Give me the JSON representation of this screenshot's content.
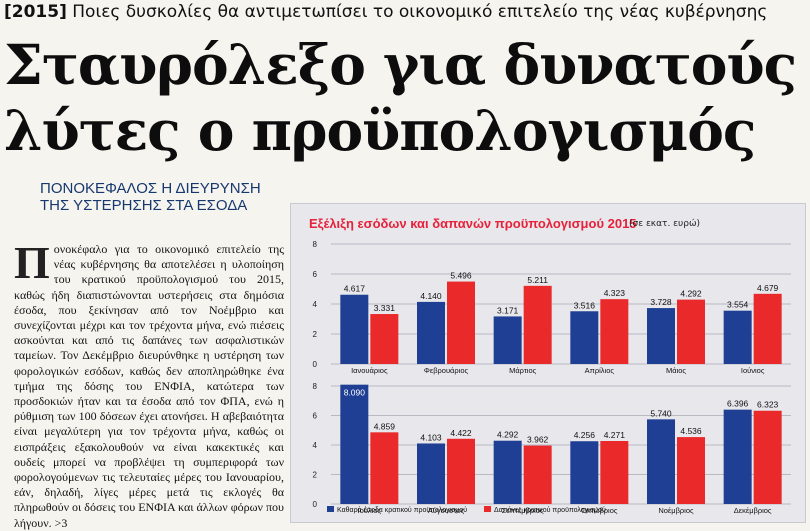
{
  "kicker": {
    "tag": "[2015]",
    "text": "Ποιες δυσκολίες θα αντιμετωπίσει το οικονομικό επιτελείο της νέας κυβέρνησης"
  },
  "headline": {
    "line1": "Σταυρόλεξο για δυνατούς",
    "line2": "λύτες ο προϋπολογισμός"
  },
  "subhead": {
    "line1": "ΠΟΝΟΚΕΦΑΛΟΣ Η ΔΙΕΥΡΥΝΣΗ",
    "line2": "ΤΗΣ ΥΣΤΕΡΗΣΗΣ ΣΤΑ ΕΣΟΔΑ"
  },
  "article": {
    "dropcap": "Π",
    "text": "ονοκέφαλο για το οικονομικό επιτελείο της νέας κυβέρνησης θα αποτελέσει η υλοποίηση του κρατικού προϋπολογισμού του 2015, καθώς ήδη διαπιστώνονται υστερήσεις στα δημόσια έσοδα, που ξεκίνησαν από τον Νοέμβριο και συνεχίζονται μέχρι και τον τρέχοντα μήνα, ενώ πιέσεις ασκούνται και από τις δαπάνες των ασφαλιστικών ταμείων. Τον Δεκέμβριο διευρύνθηκε η υστέρηση των φορολογικών εσόδων, καθώς δεν αποπληρώθηκε ένα τμήμα της δόσης του ΕΝΦΙΑ, κατώτερα των προσδοκιών ήταν και τα έσοδα από τον ΦΠΑ, ενώ η ρύθμιση των 100 δόσεων έχει ατονήσει. Η αβεβαιότητα είναι μεγαλύτερη για τον τρέχοντα μήνα, καθώς οι εισπράξεις εξακολουθούν να είναι κακεκτικές και ουδείς μπορεί να προβλέψει τη συμπεριφορά των φορολογούμενων τις τελευταίες μέρες του Ιανουαρίου, εάν, δηλαδή, λίγες μέρες μετά τις εκλογές θα πληρωθούν οι δόσεις του ΕΝΦΙΑ και άλλων φόρων που λήγουν. >3"
  },
  "chart_data": {
    "type": "bar",
    "title": "Εξέλιξη εσόδων και δαπανών προϋπολογισμού 2015",
    "unit": "(σε εκατ. ευρώ)",
    "ylim": [
      0,
      8
    ],
    "yticks": [
      "0",
      "2",
      "4",
      "6",
      "8"
    ],
    "colors": {
      "revenue": "#1f3f95",
      "expenses": "#ea2a2a"
    },
    "categories": [
      "Ιανουάριος",
      "Φεβρουάριος",
      "Μάρτιος",
      "Απρίλιος",
      "Μάιος",
      "Ιούνιος",
      "Ιούλιος",
      "Αύγουστος",
      "Σεπτέμβριος",
      "Οκτώβριος",
      "Νοέμβριος",
      "Δεκέμβριος"
    ],
    "series": [
      {
        "name": "Καθαρά έσοδα κρατικού προϋπολογισμού",
        "values": [
          4.617,
          4.14,
          3.171,
          3.516,
          3.728,
          3.554,
          8.09,
          4.103,
          4.292,
          4.256,
          5.74,
          6.396
        ],
        "labels": [
          "4.617",
          "4.140",
          "3.171",
          "3.516",
          "3.728",
          "3.554",
          "8.090",
          "4.103",
          "4.292",
          "4.256",
          "5.740",
          "6.396"
        ]
      },
      {
        "name": "Δαπάνες κρατικού προϋπολογισμού",
        "values": [
          3.331,
          5.496,
          5.211,
          4.323,
          4.292,
          4.679,
          4.859,
          4.422,
          3.962,
          4.271,
          4.536,
          6.323
        ],
        "labels": [
          "3.331",
          "5.496",
          "5.211",
          "4.323",
          "4.292",
          "4.679",
          "4.859",
          "4.422",
          "3.962",
          "4.271",
          "4.536",
          "6.323"
        ]
      }
    ]
  }
}
